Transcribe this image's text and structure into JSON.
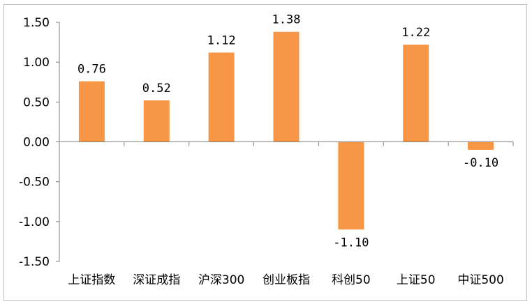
{
  "chart_data": {
    "type": "bar",
    "categories": [
      "上证指数",
      "深证成指",
      "沪深300",
      "创业板指",
      "科创50",
      "上证50",
      "中证500"
    ],
    "values": [
      0.76,
      0.52,
      1.12,
      1.38,
      -1.1,
      1.22,
      -0.1
    ],
    "data_labels": [
      "0.76",
      "0.52",
      "1.12",
      "1.38",
      "-1.10",
      "1.22",
      "-0.10"
    ],
    "ylim": [
      -1.5,
      1.5
    ],
    "y_ticks": [
      1.5,
      1.0,
      0.5,
      0.0,
      -0.5,
      -1.0,
      -1.5
    ],
    "y_tick_labels": [
      "1.50",
      "1.00",
      "0.50",
      "0.00",
      "-0.50",
      "-1.00",
      "-1.50"
    ],
    "bar_color": "#F79646",
    "axis_color": "#808080",
    "grid": false,
    "legend": "none",
    "title": "",
    "xlabel": "",
    "ylabel": ""
  }
}
